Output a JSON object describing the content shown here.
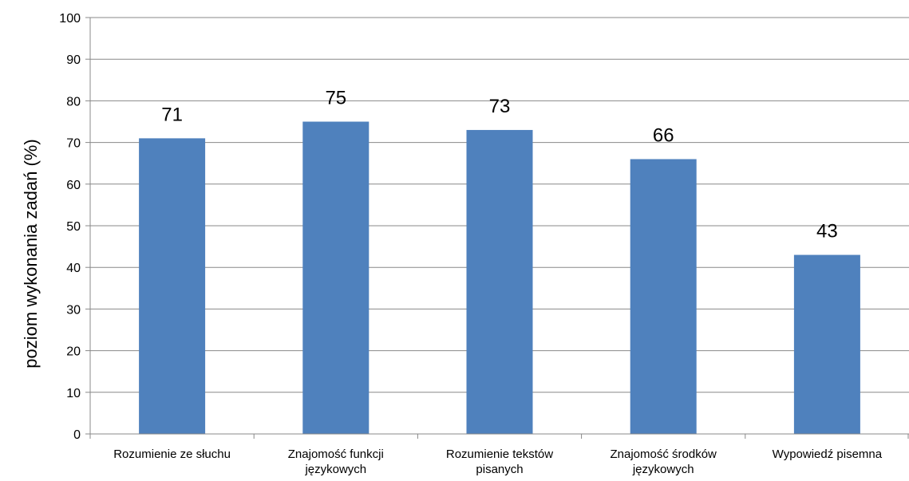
{
  "chart_data": {
    "type": "bar",
    "title": "",
    "xlabel": "",
    "ylabel": "poziom wykonania zadań  (%)",
    "categories": [
      [
        "Rozumienie ze słuchu"
      ],
      [
        "Znajomość funkcji",
        "językowych"
      ],
      [
        "Rozumienie tekstów",
        "pisanych"
      ],
      [
        "Znajomość środków",
        "językowych"
      ],
      [
        "Wypowiedź pisemna"
      ]
    ],
    "values": [
      71,
      75,
      73,
      66,
      43
    ],
    "value_labels": [
      "71",
      "75",
      "73",
      "66",
      "43"
    ],
    "ylim": [
      0,
      100
    ],
    "yticks": [
      0,
      10,
      20,
      30,
      40,
      50,
      60,
      70,
      80,
      90,
      100
    ],
    "grid": true,
    "legend": "none",
    "bar_color": "#4F81BD",
    "grid_color": "#888888",
    "axis_color": "#888888"
  }
}
